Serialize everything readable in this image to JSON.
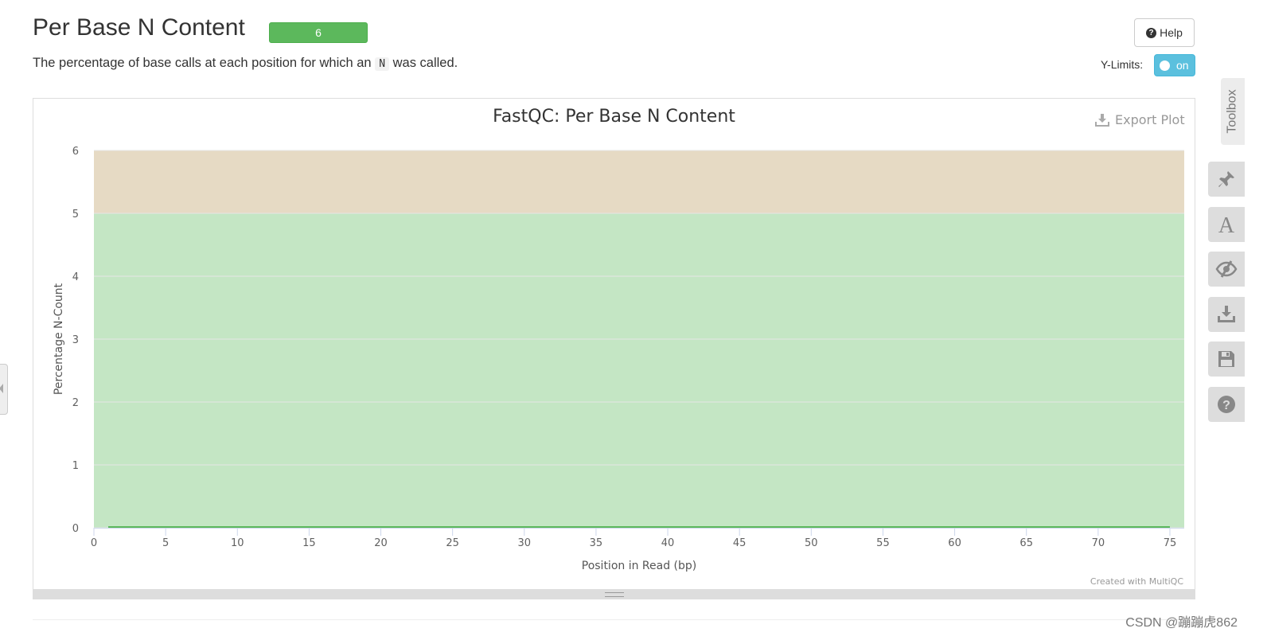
{
  "section": {
    "title": "Per Base N Content",
    "badge": "6",
    "description_before": "The percentage of base calls at each position for which an",
    "description_code": "N",
    "description_after": "was called."
  },
  "controls": {
    "help_label": "Help",
    "ylimits_label": "Y-Limits:",
    "ylimits_state": "on"
  },
  "plot": {
    "export_label": "Export Plot",
    "credit": "Created with MultiQC"
  },
  "toolbox": {
    "label": "Toolbox",
    "tools": [
      "pin-icon",
      "font-icon",
      "eye-slash-icon",
      "download-icon",
      "save-icon",
      "question-circle-icon"
    ]
  },
  "watermark": "CSDN @蹦蹦虎862",
  "colors": {
    "pass_band": "#c4e6c4",
    "warn_band": "#e6dac4",
    "line": "#5cb85c",
    "badge": "#5cb85c",
    "toggle": "#5bc0de"
  },
  "chart_data": {
    "type": "line",
    "title": "FastQC: Per Base N Content",
    "xlabel": "Position in Read (bp)",
    "ylabel": "Percentage N-Count",
    "xlim": [
      0,
      76
    ],
    "ylim": [
      0,
      6
    ],
    "xticks": [
      0,
      5,
      10,
      15,
      20,
      25,
      30,
      35,
      40,
      45,
      50,
      55,
      60,
      65,
      70,
      75
    ],
    "yticks": [
      0,
      1,
      2,
      3,
      4,
      5,
      6
    ],
    "grid": true,
    "bands": [
      {
        "from": 0,
        "to": 5,
        "color": "#c4e6c4"
      },
      {
        "from": 5,
        "to": 6,
        "color": "#e6dac4"
      }
    ],
    "series": [
      {
        "x": [
          1,
          75
        ],
        "values": [
          0,
          0
        ],
        "color": "#5cb85c"
      }
    ]
  }
}
